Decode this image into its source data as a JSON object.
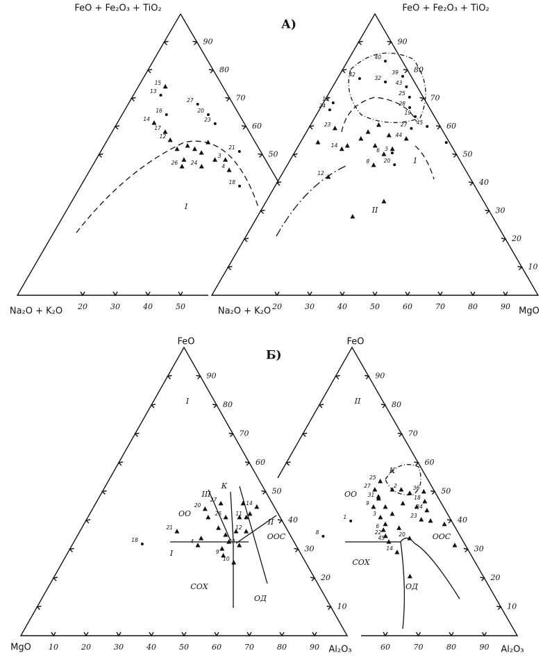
{
  "title_a": "А)",
  "title_b": "Б)",
  "panels": [
    {
      "apex_label": "FeO + Fe₂O₃ + TiO₂",
      "left_label": "Na₂O + K₂O",
      "bottom_ticks": [
        20,
        30,
        40,
        50
      ],
      "side_ticks": [
        50,
        60,
        70,
        80,
        90
      ],
      "regions": [
        "I"
      ],
      "points": [
        {
          "label": "13",
          "marker": "dot",
          "a": 71.1,
          "b": 8.4
        },
        {
          "label": "15",
          "marker": "tri",
          "a": 74.1,
          "b": 8.3
        },
        {
          "label": "14",
          "marker": "tri",
          "a": 61.2,
          "b": 11.3
        },
        {
          "label": "16",
          "marker": "dot",
          "a": 64.2,
          "b": 13.6
        },
        {
          "label": "27",
          "marker": "dot",
          "a": 67.9,
          "b": 21.3
        },
        {
          "label": "20",
          "marker": "dot",
          "a": 64.2,
          "b": 26.4
        },
        {
          "label": "23",
          "marker": "dot",
          "a": 61.0,
          "b": 30.1
        },
        {
          "label": "21",
          "marker": "dot",
          "a": 51.1,
          "b": 42.5
        },
        {
          "label": "18",
          "marker": "dot",
          "a": 38.8,
          "b": 48.7
        },
        {
          "label": "3",
          "marker": "tri",
          "a": 48.1,
          "b": 39.7
        },
        {
          "label": "4",
          "marker": "tri",
          "a": 44.4,
          "b": 42.7
        },
        {
          "label": "26",
          "marker": "tri",
          "a": 45.7,
          "b": 27.6
        },
        {
          "label": "24",
          "marker": "tri",
          "a": 45.7,
          "b": 33.6
        },
        {
          "label": "17",
          "marker": "tri",
          "a": 58.0,
          "b": 16.3
        },
        {
          "label": "12",
          "marker": "tri",
          "a": 55.1,
          "b": 19.3
        },
        {
          "marker": "tri",
          "a": 51.9,
          "b": 28.4
        },
        {
          "marker": "tri",
          "a": 53.1,
          "b": 25.6
        },
        {
          "marker": "tri",
          "a": 50.6,
          "b": 31.1
        },
        {
          "marker": "tri",
          "a": 54.3,
          "b": 31.3
        },
        {
          "marker": "tri",
          "a": 51.9,
          "b": 23.0
        },
        {
          "marker": "tri",
          "a": 48.1,
          "b": 27.0
        },
        {
          "marker": "tri",
          "a": 48.1,
          "b": 36.5
        }
      ]
    },
    {
      "apex_label": "FeO + Fe₂O₃ + TiO₂",
      "left_label": "Na₂O + K₂O",
      "right_label": "MgO",
      "bottom_ticks": [
        20,
        30,
        40,
        50,
        60,
        70,
        80,
        90
      ],
      "side_ticks": [
        10,
        20,
        30,
        40,
        50,
        60,
        70,
        80,
        90
      ],
      "regions": [
        "II",
        "1"
      ],
      "points": [
        {
          "label": "40",
          "marker": "dot",
          "a": 83.2,
          "b": 11.6
        },
        {
          "label": "42",
          "marker": "dot",
          "a": 77.0,
          "b": 6.8
        },
        {
          "label": "39",
          "marker": "dot",
          "a": 77.8,
          "b": 19.6
        },
        {
          "label": "32",
          "marker": "dot",
          "a": 75.8,
          "b": 15.3
        },
        {
          "label": "43",
          "marker": "dot",
          "a": 74.1,
          "b": 22.6
        },
        {
          "label": "25",
          "marker": "dot",
          "a": 70.4,
          "b": 25.4
        },
        {
          "label": "28",
          "marker": "dot",
          "a": 66.7,
          "b": 27.3
        },
        {
          "label": "19",
          "marker": "dot",
          "a": 63.5,
          "b": 30.6
        },
        {
          "label": "15",
          "marker": "dot",
          "a": 68.4,
          "b": 3.0
        },
        {
          "label": "24",
          "marker": "dot",
          "a": 65.9,
          "b": 3.2
        },
        {
          "label": "23",
          "marker": "tri",
          "a": 59.3,
          "b": 8.1
        },
        {
          "label": "45",
          "marker": "dot",
          "a": 60.0,
          "b": 36.0
        },
        {
          "label": "27",
          "marker": "dot",
          "a": 59.3,
          "b": 31.5
        },
        {
          "label": "44",
          "marker": "tri",
          "a": 55.6,
          "b": 31.8
        },
        {
          "label": "20",
          "marker": "dot",
          "a": 46.4,
          "b": 32.8
        },
        {
          "label": "8",
          "marker": "tri",
          "a": 46.2,
          "b": 26.5
        },
        {
          "label": "6",
          "marker": "tri",
          "a": 50.1,
          "b": 27.7
        },
        {
          "label": "3",
          "marker": "dot",
          "a": 50.6,
          "b": 30.0
        },
        {
          "label": "12",
          "marker": "tri",
          "a": 42.0,
          "b": 14.7
        },
        {
          "label": "14",
          "marker": "tri",
          "a": 51.9,
          "b": 13.9
        },
        {
          "marker": "dot",
          "a": 54.3,
          "b": 44.7
        },
        {
          "marker": "tri",
          "a": 54.3,
          "b": 5.4
        },
        {
          "marker": "tri",
          "a": 27.9,
          "b": 29.2
        },
        {
          "marker": "tri",
          "a": 33.3,
          "b": 36.1
        },
        {
          "marker": "tri",
          "a": 58.0,
          "b": 18.9
        },
        {
          "marker": "tri",
          "a": 60.5,
          "b": 20.9
        },
        {
          "marker": "tri",
          "a": 55.6,
          "b": 17.9
        },
        {
          "marker": "tri",
          "a": 56.8,
          "b": 25.9
        },
        {
          "marker": "tri",
          "a": 53.1,
          "b": 15.0
        },
        {
          "marker": "tri",
          "a": 53.1,
          "b": 23.5
        },
        {
          "marker": "tri",
          "a": 51.9,
          "b": 29.4
        }
      ]
    },
    {
      "apex_label": "FeO",
      "left_label": "MgO",
      "right_label": "Al₂O₃",
      "bottom_ticks": [
        10,
        20,
        30,
        40,
        50,
        60,
        70,
        80,
        90
      ],
      "side_ticks": [
        10,
        20,
        30,
        40,
        50,
        60,
        70,
        80,
        90
      ],
      "regions": [
        "I",
        "III",
        "К",
        "ОО",
        "II",
        "ООС",
        "I",
        "СОХ",
        "ОД"
      ],
      "points": [
        {
          "label": "27",
          "marker": "tri",
          "a": 45.8,
          "b": 38.4
        },
        {
          "label": "20",
          "marker": "tri",
          "a": 43.9,
          "b": 34.5
        },
        {
          "label": "25",
          "marker": "tri",
          "a": 41.0,
          "b": 42.3
        },
        {
          "label": "14",
          "marker": "tri",
          "a": 44.6,
          "b": 50.0
        },
        {
          "label": "11",
          "marker": "tri",
          "a": 41.0,
          "b": 48.6
        },
        {
          "label": "12",
          "marker": "tri",
          "a": 36.1,
          "b": 51.0
        },
        {
          "label": "28",
          "marker": "tri",
          "a": 31.3,
          "b": 51.3
        },
        {
          "label": "21",
          "marker": "tri",
          "a": 36.1,
          "b": 29.8
        },
        {
          "label": "4",
          "marker": "tri",
          "a": 31.3,
          "b": 38.6
        },
        {
          "label": "9",
          "marker": "tri",
          "a": 27.7,
          "b": 48.2
        },
        {
          "label": "10",
          "marker": "tri",
          "a": 25.3,
          "b": 52.6
        },
        {
          "label": "18",
          "marker": "dot",
          "a": 31.8,
          "b": 21.3
        },
        {
          "label": "8",
          "marker": "dot",
          "a": 34.5,
          "b": 75.4
        },
        {
          "marker": "tri",
          "a": 34.9,
          "b": 45.3
        },
        {
          "marker": "tri",
          "a": 32.5,
          "b": 47.5
        },
        {
          "marker": "tri",
          "a": 36.1,
          "b": 47.9
        },
        {
          "marker": "tri",
          "a": 37.3,
          "b": 41.9
        },
        {
          "marker": "tri",
          "a": 41.0,
          "b": 36.9
        },
        {
          "marker": "tri",
          "a": 41.0,
          "b": 46.5
        },
        {
          "marker": "tri",
          "a": 30.1,
          "b": 46.6
        },
        {
          "marker": "tri",
          "a": 33.7,
          "b": 38.4
        },
        {
          "marker": "tri",
          "a": 45.8,
          "b": 45.2
        },
        {
          "marker": "tri",
          "a": 42.2,
          "b": 49.1
        }
      ]
    },
    {
      "apex_label": "FeO",
      "right_label": "Al₂O₃",
      "bottom_ticks": [
        60,
        70,
        80,
        90
      ],
      "side_ticks": [
        10,
        20,
        30,
        40,
        50,
        60,
        70,
        80,
        90
      ],
      "regions": [
        "II",
        "К",
        "ОО",
        "ООС",
        "СОХ",
        "ОД"
      ],
      "points": [
        {
          "label": "1",
          "marker": "dot",
          "a": 39.8,
          "b": 29.6
        },
        {
          "label": "25",
          "marker": "tri",
          "a": 53.5,
          "b": 31.7
        },
        {
          "label": "27",
          "marker": "tri",
          "a": 50.6,
          "b": 31.5
        },
        {
          "label": "31",
          "marker": "tri",
          "a": 47.5,
          "b": 34.2
        },
        {
          "label": "9",
          "marker": "tri",
          "a": 44.6,
          "b": 34.1
        },
        {
          "label": "3",
          "marker": "tri",
          "a": 41.0,
          "b": 38.0
        },
        {
          "label": "6",
          "marker": "tri",
          "a": 36.6,
          "b": 41.1
        },
        {
          "label": "22",
          "marker": "tri",
          "a": 34.5,
          "b": 42.8
        },
        {
          "label": "45",
          "marker": "tri",
          "a": 32.5,
          "b": 44.8
        },
        {
          "label": "14",
          "marker": "tri",
          "a": 28.9,
          "b": 49.1
        },
        {
          "label": "36",
          "marker": "tri",
          "a": 49.9,
          "b": 46.7
        },
        {
          "label": "18",
          "marker": "tri",
          "a": 46.5,
          "b": 48.7
        },
        {
          "label": "24",
          "marker": "tri",
          "a": 43.4,
          "b": 50.9
        },
        {
          "label": "23",
          "marker": "tri",
          "a": 40.2,
          "b": 50.8
        },
        {
          "label": "2",
          "marker": "tri",
          "a": 50.6,
          "b": 39.5
        },
        {
          "label": "20",
          "marker": "tri",
          "a": 33.7,
          "b": 50.5
        },
        {
          "marker": "tri",
          "a": 39.8,
          "b": 53.8
        },
        {
          "marker": "tri",
          "a": 20.5,
          "b": 57.2
        },
        {
          "marker": "tri",
          "a": 31.3,
          "b": 65.4
        },
        {
          "marker": "tri",
          "a": 49.4,
          "b": 42.7
        },
        {
          "marker": "tri",
          "a": 42.2,
          "b": 41.0
        },
        {
          "marker": "tri",
          "a": 37.3,
          "b": 45.5
        },
        {
          "marker": "tri",
          "a": 44.6,
          "b": 37.7
        },
        {
          "marker": "tri",
          "a": 45.8,
          "b": 42.4
        },
        {
          "marker": "tri",
          "a": 50.6,
          "b": 36.8
        },
        {
          "marker": "tri",
          "a": 38.6,
          "b": 40.7
        },
        {
          "marker": "tri",
          "a": 44.6,
          "b": 47.2
        },
        {
          "marker": "tri",
          "a": 48.2,
          "b": 33.8
        },
        {
          "marker": "tri",
          "a": 38.6,
          "b": 58.6
        }
      ]
    }
  ]
}
